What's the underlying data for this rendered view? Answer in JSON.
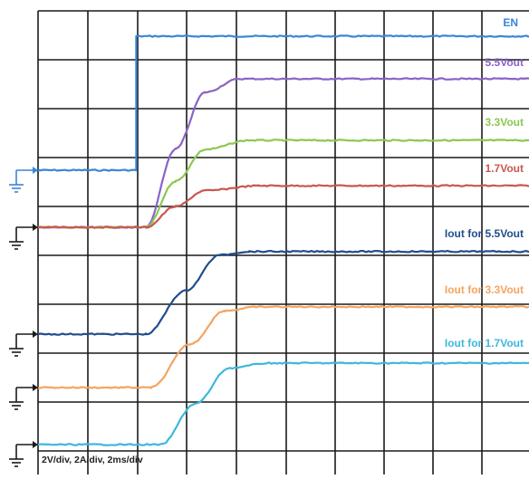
{
  "chart_data": {
    "type": "line",
    "scale_label": "2V/div, 2A/div, 2ms/div",
    "x_unit": "ms",
    "x_per_div": 2,
    "x_range": [
      -4,
      16
    ],
    "grid_divisions": {
      "x": 10,
      "y": 10
    },
    "series": [
      {
        "name": "EN",
        "color": "#3a86d6",
        "ref_level": "Low",
        "x": [
          -4,
          0,
          0,
          16
        ],
        "y": [
          "Low",
          "Low",
          "High",
          "High"
        ]
      },
      {
        "name": "5.5Vout",
        "color": "#8a63c8",
        "x": [
          -4,
          0.4,
          1.6,
          2.8,
          4.2,
          16
        ],
        "y": [
          0,
          0,
          2.9,
          5.0,
          5.5,
          5.5
        ]
      },
      {
        "name": "3.3Vout",
        "color": "#8cc850",
        "x": [
          -4,
          0.4,
          1.6,
          2.8,
          4.6,
          16
        ],
        "y": [
          0,
          0,
          1.75,
          2.95,
          3.3,
          3.3
        ]
      },
      {
        "name": "1.7Vout",
        "color": "#c9574f",
        "x": [
          -4,
          0.4,
          1.6,
          2.8,
          5.0,
          16
        ],
        "y": [
          0,
          0,
          0.85,
          1.5,
          1.7,
          1.7
        ]
      },
      {
        "name": "Iout for 5.5Vout",
        "color": "#1f4e8c",
        "x": [
          -4,
          0.4,
          2.0,
          3.4,
          4.6,
          16
        ],
        "y": [
          0,
          0,
          1.0,
          1.82,
          1.9,
          1.9
        ]
      },
      {
        "name": "Iout for 3.3Vout",
        "color": "#f4a460",
        "x": [
          -4,
          0.6,
          2.2,
          3.6,
          5.0,
          16
        ],
        "y": [
          0,
          0,
          1.1,
          1.95,
          2.05,
          2.05
        ]
      },
      {
        "name": "Iout for 1.7Vout",
        "color": "#3fb7dc",
        "x": [
          -4,
          1.0,
          2.4,
          3.8,
          5.4,
          16
        ],
        "y": [
          0,
          0,
          1.0,
          1.88,
          2.0,
          2.0
        ]
      }
    ]
  }
}
